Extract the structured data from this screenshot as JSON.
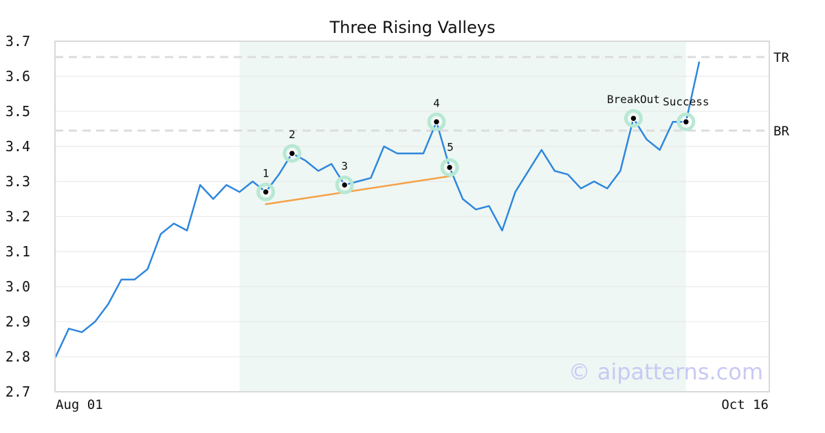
{
  "chart_data": {
    "type": "line",
    "title": "Three Rising Valleys",
    "xlabel": "",
    "ylabel": "",
    "ylim": [
      2.7,
      3.7
    ],
    "yticks": [
      "2.7",
      "2.8",
      "2.9",
      "3.0",
      "3.1",
      "3.2",
      "3.3",
      "3.4",
      "3.5",
      "3.6",
      "3.7"
    ],
    "xtick_labels": [
      "Aug 01",
      "Oct 16"
    ],
    "grid": "horizontal",
    "series": [
      {
        "color": "#2e86de",
        "values": [
          2.8,
          2.88,
          2.87,
          2.9,
          2.95,
          3.02,
          3.02,
          3.05,
          3.15,
          3.18,
          3.16,
          3.29,
          3.25,
          3.29,
          3.27,
          3.3,
          3.27,
          3.32,
          3.38,
          3.36,
          3.33,
          3.35,
          3.29,
          3.3,
          3.31,
          3.4,
          3.38,
          3.38,
          3.38,
          3.47,
          3.34,
          3.25,
          3.22,
          3.23,
          3.16,
          3.27,
          3.33,
          3.39,
          3.33,
          3.32,
          3.28,
          3.3,
          3.28,
          3.33,
          3.48,
          3.42,
          3.39,
          3.47,
          3.47,
          3.64
        ]
      }
    ],
    "pattern_region": {
      "start_index": 14,
      "end_index": 48,
      "color": "#eef7f3"
    },
    "reference_lines": [
      {
        "label": "TR",
        "y": 3.655
      },
      {
        "label": "BR",
        "y": 3.445
      }
    ],
    "trendline": {
      "start_index": 16,
      "start_value": 3.235,
      "end_index": 30,
      "end_value": 3.315,
      "color": "#f5a047"
    },
    "annotations": [
      {
        "label": "1",
        "index": 16,
        "value": 3.27
      },
      {
        "label": "2",
        "index": 18,
        "value": 3.38
      },
      {
        "label": "3",
        "index": 22,
        "value": 3.29
      },
      {
        "label": "4",
        "index": 29,
        "value": 3.47
      },
      {
        "label": "5",
        "index": 30,
        "value": 3.34
      },
      {
        "label": "BreakOut",
        "index": 44,
        "value": 3.48
      },
      {
        "label": "Success",
        "index": 48,
        "value": 3.47
      }
    ],
    "watermark": "© aipatterns.com"
  }
}
